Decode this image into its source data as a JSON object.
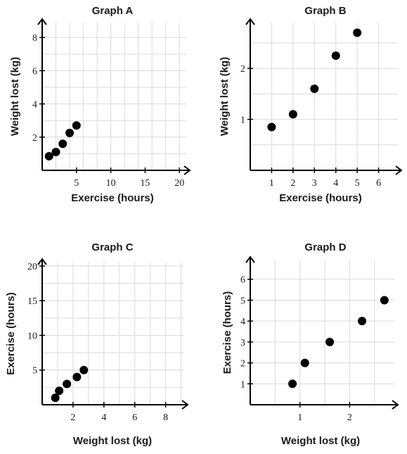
{
  "chart_data": [
    {
      "id": "A",
      "type": "scatter",
      "title": "Graph A",
      "xlabel": "Exercise (hours)",
      "ylabel": "Weight lost (kg)",
      "xlim": [
        0,
        21
      ],
      "ylim": [
        0,
        8.9
      ],
      "grid": true,
      "grid_step": {
        "x": 2,
        "y": 1
      },
      "xticks": [
        5,
        10,
        15,
        20
      ],
      "yticks": [
        2,
        4,
        6,
        8
      ],
      "points": [
        {
          "x": 1,
          "y": 0.85
        },
        {
          "x": 2,
          "y": 1.1
        },
        {
          "x": 3,
          "y": 1.6
        },
        {
          "x": 4,
          "y": 2.25
        },
        {
          "x": 5,
          "y": 2.7
        }
      ]
    },
    {
      "id": "B",
      "type": "scatter",
      "title": "Graph B",
      "xlabel": "Exercise (hours)",
      "ylabel": "Weight lost (kg)",
      "xlim": [
        0,
        6.9
      ],
      "ylim": [
        0,
        2.9
      ],
      "grid": true,
      "grid_step": {
        "x": 1,
        "y": 0.5
      },
      "xticks": [
        1,
        2,
        3,
        4,
        5,
        6
      ],
      "yticks": [
        1,
        2
      ],
      "points": [
        {
          "x": 1,
          "y": 0.85
        },
        {
          "x": 2,
          "y": 1.1
        },
        {
          "x": 3,
          "y": 1.6
        },
        {
          "x": 4,
          "y": 2.25
        },
        {
          "x": 5,
          "y": 2.7
        }
      ]
    },
    {
      "id": "C",
      "type": "scatter",
      "title": "Graph C",
      "xlabel": "Weight lost (kg)",
      "ylabel": "Exercise (hours)",
      "xlim": [
        0,
        9.2
      ],
      "ylim": [
        0,
        20.5
      ],
      "grid": true,
      "grid_step": {
        "x": 1,
        "y": 2.5
      },
      "xticks": [
        2,
        4,
        6,
        8
      ],
      "yticks": [
        5,
        10,
        15,
        20
      ],
      "points": [
        {
          "x": 0.85,
          "y": 1
        },
        {
          "x": 1.1,
          "y": 2
        },
        {
          "x": 1.6,
          "y": 3
        },
        {
          "x": 2.25,
          "y": 4
        },
        {
          "x": 2.7,
          "y": 5
        }
      ]
    },
    {
      "id": "D",
      "type": "scatter",
      "title": "Graph D",
      "xlabel": "Weight lost (kg)",
      "ylabel": "Exercise (hours)",
      "xlim": [
        0,
        2.9
      ],
      "ylim": [
        0,
        6.9
      ],
      "grid": true,
      "grid_step": {
        "x": 0.5,
        "y": 1
      },
      "xticks": [
        1,
        2
      ],
      "yticks": [
        1,
        2,
        3,
        4,
        5,
        6
      ],
      "points": [
        {
          "x": 0.85,
          "y": 1
        },
        {
          "x": 1.1,
          "y": 2
        },
        {
          "x": 1.6,
          "y": 3
        },
        {
          "x": 2.25,
          "y": 4
        },
        {
          "x": 2.7,
          "y": 5
        }
      ]
    }
  ]
}
